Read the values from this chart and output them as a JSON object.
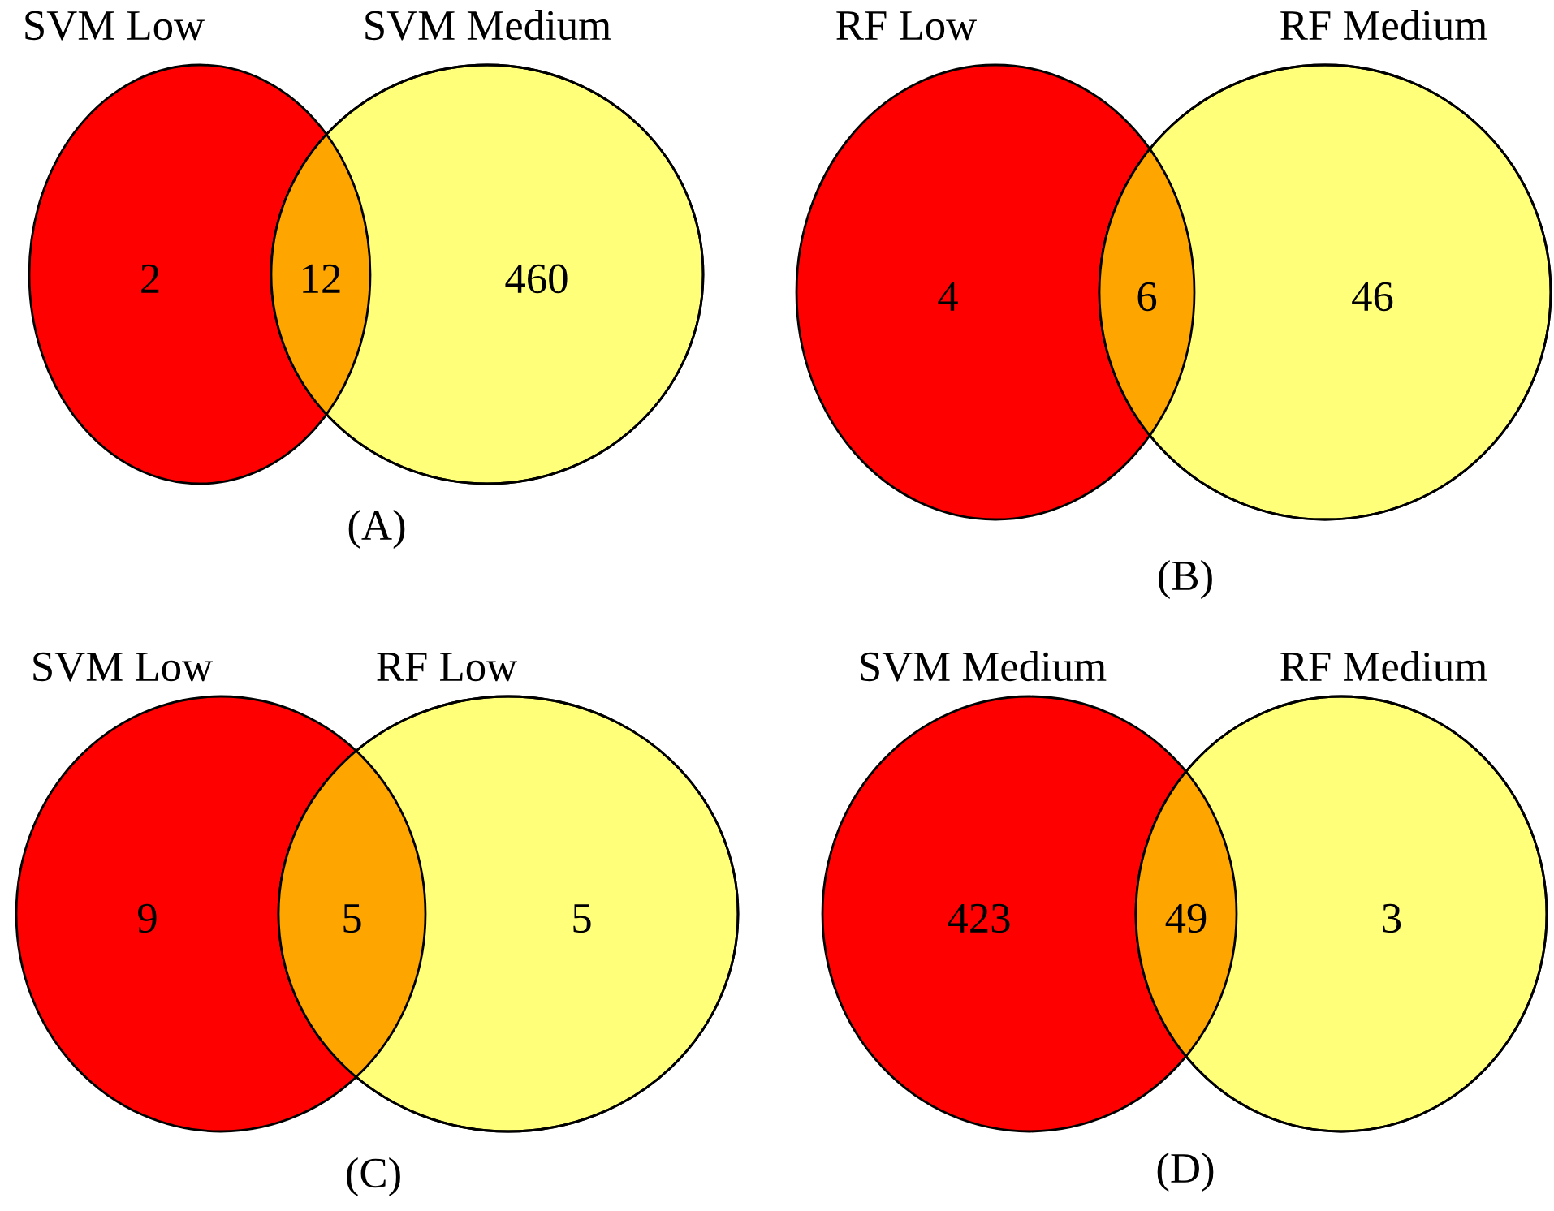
{
  "chart_data": [
    {
      "type": "other",
      "categories": [
        "SVM Low",
        null,
        "SVM Medium"
      ],
      "values": [
        2,
        12,
        460
      ],
      "colors": [
        "#ff0000",
        "#ffa500",
        "#ffff7a"
      ],
      "data_labels": true,
      "annotations": [
        "(A)"
      ]
    },
    {
      "type": "other",
      "categories": [
        "RF Low",
        null,
        "RF Medium"
      ],
      "values": [
        4,
        6,
        46
      ],
      "colors": [
        "#ff0000",
        "#ffa500",
        "#ffff7a"
      ],
      "data_labels": true,
      "annotations": [
        "(B)"
      ]
    },
    {
      "type": "other",
      "categories": [
        "SVM Low",
        null,
        "RF Low"
      ],
      "values": [
        9,
        5,
        5
      ],
      "colors": [
        "#ff0000",
        "#ffa500",
        "#ffff7a"
      ],
      "data_labels": true,
      "annotations": [
        "(C)"
      ]
    },
    {
      "type": "other",
      "categories": [
        "SVM Medium",
        null,
        "RF Medium"
      ],
      "values": [
        423,
        49,
        3
      ],
      "colors": [
        "#ff0000",
        "#ffa500",
        "#ffff7a"
      ],
      "data_labels": true,
      "annotations": [
        "(D)"
      ]
    }
  ]
}
